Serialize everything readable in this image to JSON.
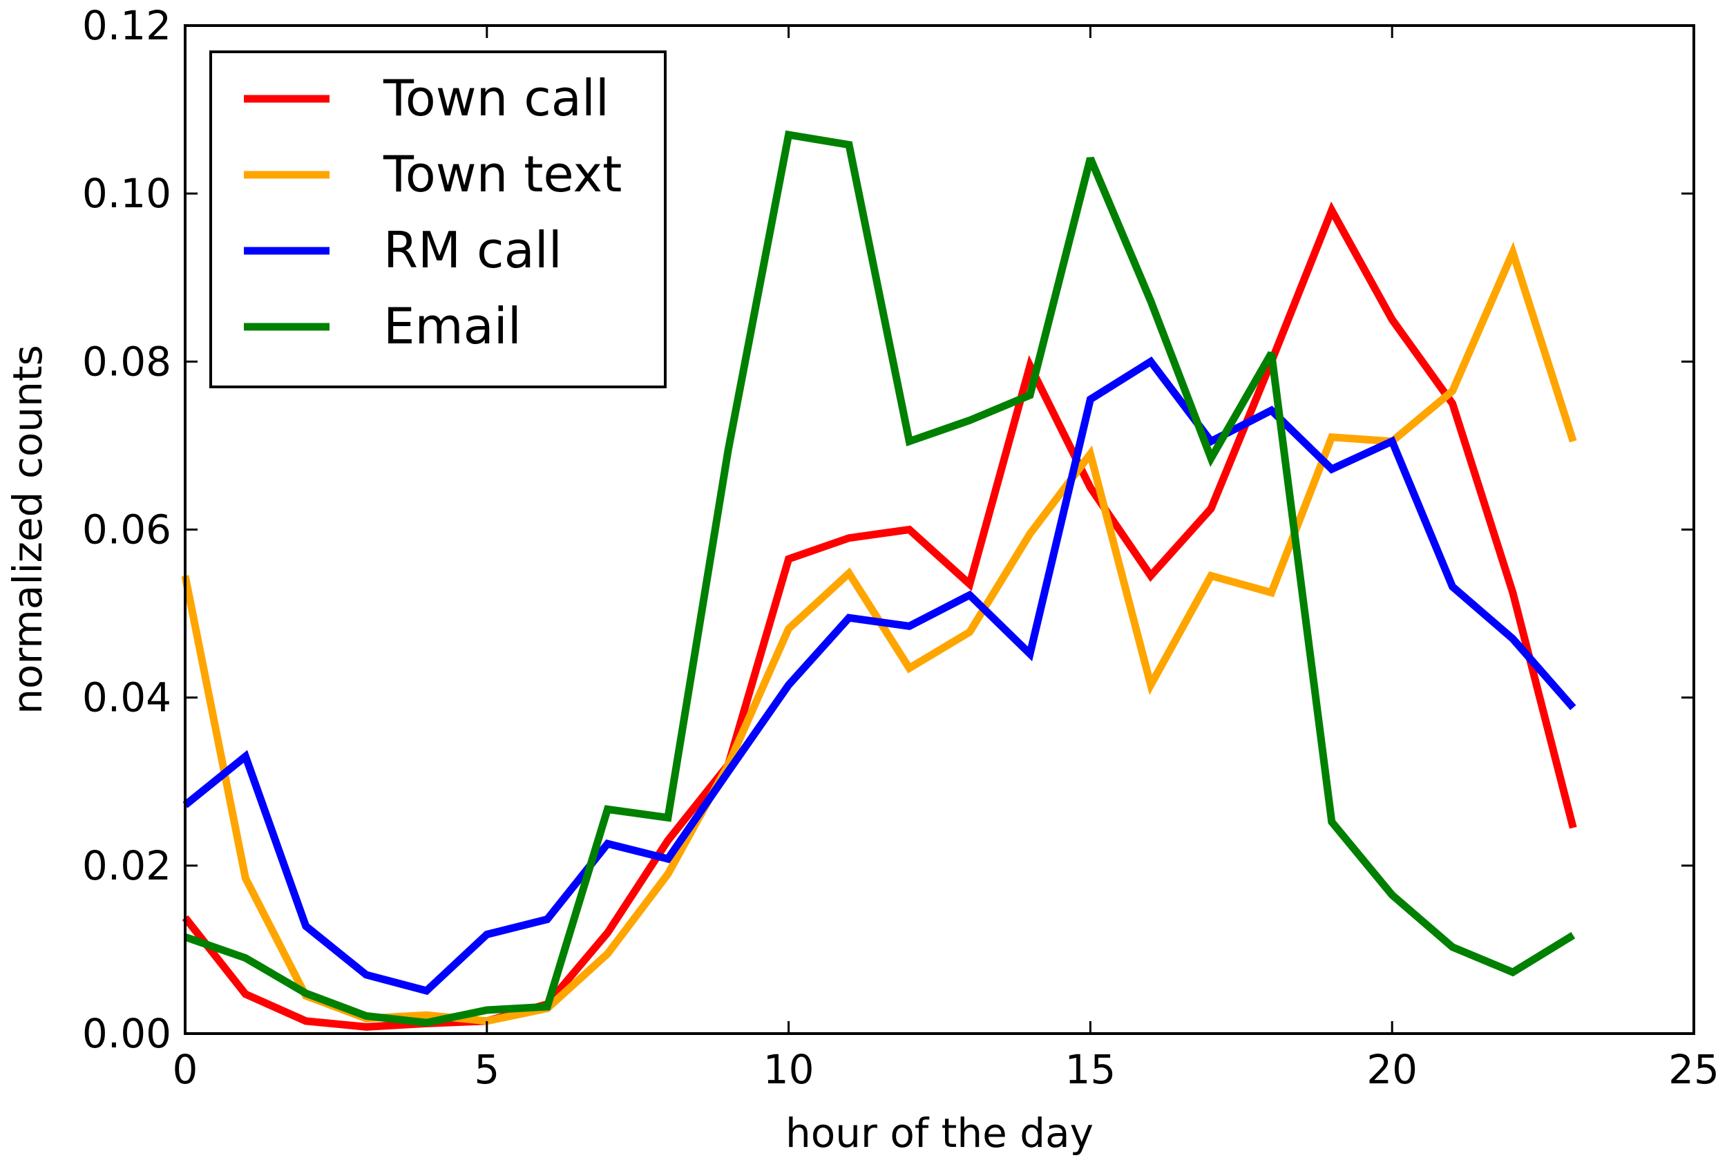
{
  "chart_data": {
    "type": "line",
    "title": "",
    "xlabel": "hour of the day",
    "ylabel": "normalized counts",
    "xlim": [
      0,
      25
    ],
    "ylim": [
      0,
      0.12
    ],
    "xticks": [
      0,
      5,
      10,
      15,
      20,
      25
    ],
    "xtick_labels": [
      "0",
      "5",
      "10",
      "15",
      "20",
      "25"
    ],
    "yticks": [
      0,
      0.02,
      0.04,
      0.06,
      0.08,
      0.1,
      0.12
    ],
    "ytick_labels": [
      "0.00",
      "0.02",
      "0.04",
      "0.06",
      "0.08",
      "0.10",
      "0.12"
    ],
    "grid": false,
    "legend_position": "top-left",
    "x": [
      0,
      1,
      2,
      3,
      4,
      5,
      6,
      7,
      8,
      9,
      10,
      11,
      12,
      13,
      14,
      15,
      16,
      17,
      18,
      19,
      20,
      21,
      22,
      23
    ],
    "series": [
      {
        "name": "Town call",
        "color": "#ff0000",
        "values": [
          0.0138,
          0.0047,
          0.0015,
          0.0008,
          0.0012,
          0.0015,
          0.0035,
          0.012,
          0.023,
          0.032,
          0.0565,
          0.059,
          0.06,
          0.0535,
          0.0795,
          0.065,
          0.0545,
          0.0625,
          0.08,
          0.098,
          0.085,
          0.075,
          0.0525,
          0.0245
        ]
      },
      {
        "name": "Town text",
        "color": "#ffa500",
        "values": [
          0.0545,
          0.0185,
          0.0045,
          0.0018,
          0.0022,
          0.0015,
          0.003,
          0.0095,
          0.019,
          0.032,
          0.0482,
          0.0548,
          0.0435,
          0.0478,
          0.0595,
          0.069,
          0.0415,
          0.0545,
          0.0525,
          0.071,
          0.0705,
          0.0765,
          0.093,
          0.0705
        ]
      },
      {
        "name": "RM call",
        "color": "#0000ff",
        "values": [
          0.0272,
          0.033,
          0.0128,
          0.007,
          0.0051,
          0.0118,
          0.0136,
          0.0226,
          0.0208,
          0.0312,
          0.0415,
          0.0495,
          0.0485,
          0.0522,
          0.0452,
          0.0755,
          0.08,
          0.0705,
          0.0742,
          0.0672,
          0.0705,
          0.0532,
          0.047,
          0.0388
        ]
      },
      {
        "name": "Email",
        "color": "#008000",
        "values": [
          0.0115,
          0.009,
          0.0048,
          0.0021,
          0.0013,
          0.0028,
          0.0032,
          0.0267,
          0.0257,
          0.0695,
          0.107,
          0.1058,
          0.0705,
          0.073,
          0.076,
          0.1042,
          0.0872,
          0.0685,
          0.081,
          0.0252,
          0.0165,
          0.0103,
          0.0073,
          0.0117
        ]
      }
    ]
  }
}
